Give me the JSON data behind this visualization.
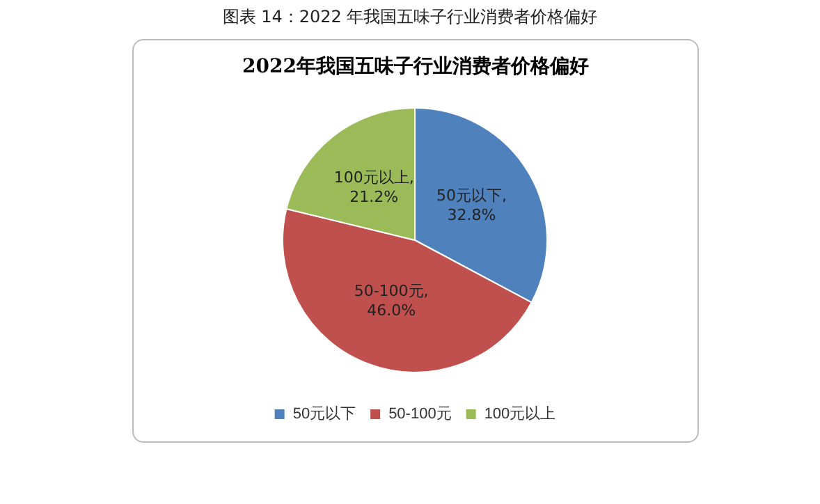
{
  "chart_data": {
    "type": "pie",
    "title": "2022年我国五味子行业消费者价格偏好",
    "annotations": [
      "图表 14：2022 年我国五味子行业消费者价格偏好"
    ],
    "categories": [
      "50元以下",
      "50-100元",
      "100元以上"
    ],
    "values": [
      32.8,
      46.0,
      21.2
    ],
    "colors": [
      "#4f81bd",
      "#c0504d",
      "#9bbb59"
    ],
    "value_labels": [
      "50元以下,\n32.8%",
      "50-100元,\n46.0%",
      "100元以上,\n21.2%"
    ],
    "legend": "bottom"
  }
}
